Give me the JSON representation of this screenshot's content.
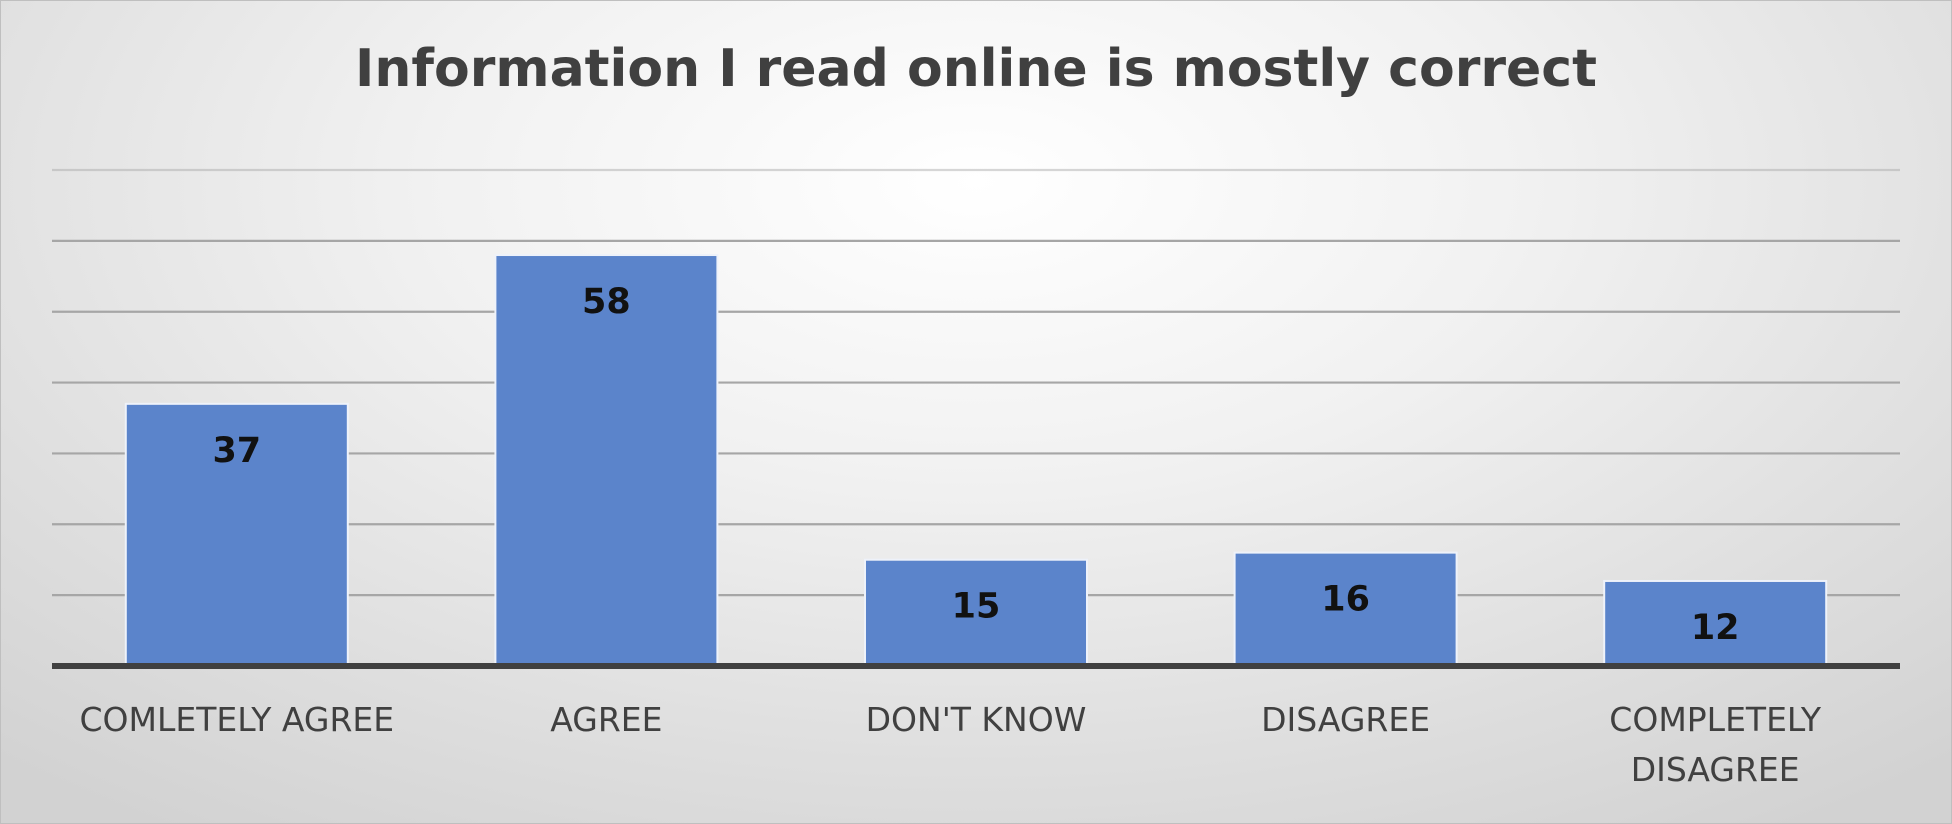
{
  "chart_data": {
    "type": "bar",
    "title": "Information I read online is mostly correct",
    "xlabel": "",
    "ylabel": "",
    "categories": [
      "COMLETELY AGREE",
      "AGREE",
      "DON'T KNOW",
      "DISAGREE",
      "COMPLETELY DISAGREE"
    ],
    "category_lines": [
      [
        "COMLETELY AGREE"
      ],
      [
        "AGREE"
      ],
      [
        "DON'T KNOW"
      ],
      [
        "DISAGREE"
      ],
      [
        "COMPLETELY",
        "DISAGREE"
      ]
    ],
    "values": [
      37,
      58,
      15,
      16,
      12
    ],
    "ylim": [
      0,
      70
    ],
    "grid": true,
    "y_axis_labels_shown": false,
    "data_labels": true,
    "legend": "none",
    "colors": {
      "bar": "#5b84cb",
      "bar_edge": "#eef2fa",
      "gridline": "#a6a6a6",
      "axis": "#404040",
      "title": "#404040"
    }
  }
}
